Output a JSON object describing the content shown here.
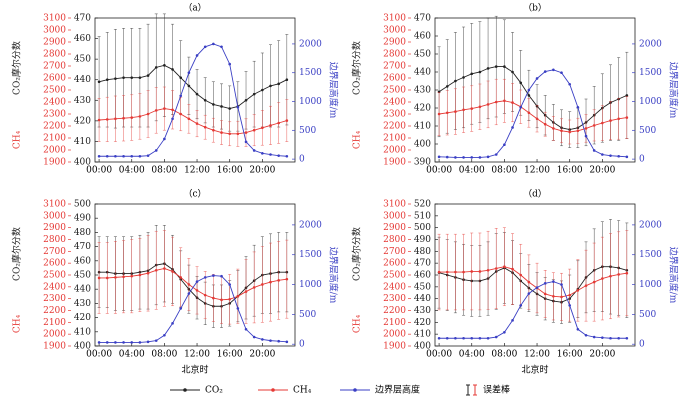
{
  "chart_data": [
    {
      "type": "line",
      "title": "（a）",
      "x": [
        0,
        1,
        2,
        3,
        4,
        5,
        6,
        7,
        8,
        9,
        10,
        11,
        12,
        13,
        14,
        15,
        16,
        17,
        18,
        19,
        20,
        21,
        22,
        23
      ],
      "xlim": [
        -0.5,
        24
      ],
      "xticks": [
        {
          "value": 0,
          "label": "00:00"
        },
        {
          "value": 4,
          "label": "04:00"
        },
        {
          "value": 8,
          "label": "08:00"
        },
        {
          "value": 12,
          "label": "12:00"
        },
        {
          "value": 16,
          "label": "16:00"
        },
        {
          "value": 20,
          "label": "20:00"
        }
      ],
      "ylabel": "CO₂摩尔分数",
      "ylim": [
        400,
        470
      ],
      "yticks": [
        400,
        410,
        420,
        430,
        440,
        450,
        460,
        470
      ],
      "y3label": "CH₄",
      "y3lim": [
        1900,
        3100
      ],
      "y3ticks": [
        1900,
        2000,
        2100,
        2200,
        2300,
        2400,
        2500,
        2600,
        2700,
        2800,
        2900,
        3000,
        3100
      ],
      "y2label": "边界层高度/m",
      "y2lim": [
        -50,
        2450
      ],
      "y2ticks": [
        0,
        500,
        1000,
        1500,
        2000
      ],
      "series": [
        {
          "name": "CO₂",
          "color": "#222222",
          "axis": "y",
          "values": [
            439,
            440,
            440.5,
            441,
            441,
            441,
            442,
            446,
            447,
            445,
            441,
            437,
            433,
            430,
            428,
            427,
            426,
            427,
            430,
            433,
            435,
            437,
            438,
            440
          ],
          "errors": [
            22,
            23,
            24,
            24,
            24,
            24,
            25,
            26,
            25,
            22,
            18,
            14,
            12,
            11,
            11,
            11,
            11,
            12,
            14,
            16,
            18,
            20,
            21,
            22
          ]
        },
        {
          "name": "CH₄",
          "color": "#e53935",
          "axis": "y3",
          "values": [
            2250,
            2255,
            2260,
            2265,
            2270,
            2280,
            2300,
            2330,
            2345,
            2335,
            2300,
            2260,
            2220,
            2190,
            2165,
            2145,
            2135,
            2135,
            2145,
            2165,
            2185,
            2205,
            2225,
            2245
          ],
          "errors": [
            180,
            185,
            190,
            190,
            190,
            190,
            195,
            190,
            180,
            160,
            140,
            120,
            110,
            100,
            100,
            100,
            100,
            105,
            115,
            130,
            145,
            160,
            170,
            175
          ]
        },
        {
          "name": "边界层高度",
          "color": "#3a3fc4",
          "axis": "y2",
          "values": [
            50,
            50,
            50,
            50,
            50,
            50,
            60,
            150,
            350,
            700,
            1100,
            1500,
            1800,
            1950,
            2000,
            1950,
            1650,
            900,
            300,
            150,
            100,
            80,
            60,
            50
          ]
        }
      ]
    },
    {
      "type": "line",
      "title": "（b）",
      "x": [
        0,
        1,
        2,
        3,
        4,
        5,
        6,
        7,
        8,
        9,
        10,
        11,
        12,
        13,
        14,
        15,
        16,
        17,
        18,
        19,
        20,
        21,
        22,
        23
      ],
      "xlim": [
        -0.5,
        24
      ],
      "xticks": [
        {
          "value": 0,
          "label": "00:00"
        },
        {
          "value": 4,
          "label": "04:00"
        },
        {
          "value": 8,
          "label": "08:00"
        },
        {
          "value": 12,
          "label": "12:00"
        },
        {
          "value": 16,
          "label": "16:00"
        },
        {
          "value": 20,
          "label": "20:00"
        }
      ],
      "ylabel": "CO₂摩尔分数",
      "ylim": [
        390,
        470
      ],
      "yticks": [
        390,
        400,
        410,
        420,
        430,
        440,
        450,
        460,
        470
      ],
      "y3label": "CH₄",
      "y3lim": [
        1900,
        3100
      ],
      "y3ticks": [
        1900,
        2000,
        2100,
        2200,
        2300,
        2400,
        2500,
        2600,
        2700,
        2800,
        2900,
        3000,
        3100
      ],
      "y2label": "边界层高度/m",
      "y2lim": [
        -50,
        2450
      ],
      "y2ticks": [
        0,
        500,
        1000,
        1500,
        2000
      ],
      "series": [
        {
          "name": "CO₂",
          "color": "#222222",
          "axis": "y",
          "values": [
            429,
            432,
            435,
            437,
            439,
            440,
            442,
            443,
            443,
            440,
            434,
            427,
            421,
            416,
            412,
            409,
            408,
            409,
            412,
            416,
            420,
            423,
            425,
            427
          ],
          "errors": [
            25,
            26,
            27,
            28,
            28,
            28,
            28,
            28,
            26,
            22,
            18,
            14,
            12,
            11,
            10,
            10,
            10,
            11,
            13,
            16,
            19,
            21,
            23,
            24
          ]
        },
        {
          "name": "CH₄",
          "color": "#e53935",
          "axis": "y3",
          "values": [
            2300,
            2310,
            2320,
            2335,
            2345,
            2360,
            2380,
            2400,
            2410,
            2395,
            2360,
            2310,
            2260,
            2215,
            2180,
            2160,
            2150,
            2160,
            2180,
            2205,
            2225,
            2245,
            2260,
            2270
          ],
          "errors": [
            180,
            185,
            190,
            190,
            190,
            190,
            195,
            190,
            180,
            160,
            140,
            120,
            110,
            100,
            100,
            100,
            100,
            105,
            115,
            130,
            145,
            160,
            170,
            175
          ]
        },
        {
          "name": "边界层高度",
          "color": "#3a3fc4",
          "axis": "y2",
          "values": [
            40,
            35,
            30,
            30,
            30,
            30,
            40,
            80,
            250,
            550,
            900,
            1200,
            1400,
            1520,
            1550,
            1500,
            1300,
            900,
            400,
            150,
            80,
            60,
            50,
            40
          ]
        }
      ]
    },
    {
      "type": "line",
      "title": "（c）",
      "xlabel": "北京时",
      "x": [
        0,
        1,
        2,
        3,
        4,
        5,
        6,
        7,
        8,
        9,
        10,
        11,
        12,
        13,
        14,
        15,
        16,
        17,
        18,
        19,
        20,
        21,
        22,
        23
      ],
      "xlim": [
        -0.5,
        24
      ],
      "xticks": [
        {
          "value": 0,
          "label": "00:00"
        },
        {
          "value": 4,
          "label": "04:00"
        },
        {
          "value": 8,
          "label": "08:00"
        },
        {
          "value": 12,
          "label": "12:00"
        },
        {
          "value": 16,
          "label": "16:00"
        },
        {
          "value": 20,
          "label": "20:00"
        }
      ],
      "ylabel": "CO₂摩尔分数",
      "ylim": [
        400,
        500
      ],
      "yticks": [
        400,
        410,
        420,
        430,
        440,
        450,
        460,
        470,
        480,
        490,
        500
      ],
      "y3label": "CH₄",
      "y3lim": [
        1900,
        3100
      ],
      "y3ticks": [
        1900,
        2000,
        2100,
        2200,
        2300,
        2400,
        2500,
        2600,
        2700,
        2800,
        2900,
        3000,
        3100
      ],
      "y2label": "边界层高度/m",
      "y2lim": [
        -30,
        2350
      ],
      "y2ticks": [
        0,
        500,
        1000,
        1500,
        2000
      ],
      "series": [
        {
          "name": "CO₂",
          "color": "#222222",
          "axis": "y",
          "values": [
            452,
            452,
            451,
            451,
            451,
            452,
            453,
            457,
            458,
            454,
            447,
            440,
            434,
            430,
            428,
            428,
            430,
            435,
            441,
            446,
            450,
            451,
            452,
            452
          ],
          "errors": [
            25,
            25,
            26,
            26,
            26,
            26,
            27,
            28,
            27,
            24,
            20,
            17,
            15,
            15,
            15,
            15,
            16,
            18,
            22,
            25,
            27,
            28,
            28,
            28
          ]
        },
        {
          "name": "CH₄",
          "color": "#e53935",
          "axis": "y3",
          "values": [
            2475,
            2475,
            2480,
            2485,
            2490,
            2500,
            2515,
            2540,
            2555,
            2530,
            2480,
            2420,
            2370,
            2330,
            2305,
            2290,
            2295,
            2320,
            2360,
            2395,
            2420,
            2440,
            2455,
            2465
          ],
          "errors": [
            300,
            300,
            305,
            305,
            310,
            310,
            320,
            330,
            320,
            290,
            250,
            220,
            200,
            200,
            200,
            200,
            210,
            230,
            270,
            300,
            320,
            330,
            330,
            330
          ]
        },
        {
          "name": "边界层高度",
          "color": "#3a3fc4",
          "axis": "y2",
          "values": [
            30,
            30,
            30,
            30,
            30,
            30,
            40,
            60,
            150,
            350,
            600,
            850,
            1050,
            1120,
            1150,
            1140,
            1000,
            600,
            250,
            120,
            80,
            60,
            50,
            40
          ]
        }
      ]
    },
    {
      "type": "line",
      "title": "（d）",
      "xlabel": "北京时",
      "x": [
        0,
        1,
        2,
        3,
        4,
        5,
        6,
        7,
        8,
        9,
        10,
        11,
        12,
        13,
        14,
        15,
        16,
        17,
        18,
        19,
        20,
        21,
        22,
        23
      ],
      "xlim": [
        -0.5,
        24
      ],
      "xticks": [
        {
          "value": 0,
          "label": "00:00"
        },
        {
          "value": 4,
          "label": "04:00"
        },
        {
          "value": 8,
          "label": "08:00"
        },
        {
          "value": 12,
          "label": "12:00"
        },
        {
          "value": 16,
          "label": "16:00"
        },
        {
          "value": 20,
          "label": "20:00"
        }
      ],
      "ylabel": "CO₂摩尔分数",
      "ylim": [
        400,
        520
      ],
      "yticks": [
        400,
        410,
        420,
        430,
        440,
        450,
        460,
        470,
        480,
        490,
        500,
        510,
        520
      ],
      "y3label": "CH₄",
      "y3lim": [
        1900,
        3100
      ],
      "y3ticks": [
        1900,
        2000,
        2100,
        2200,
        2300,
        2400,
        2500,
        2600,
        2700,
        2800,
        2900,
        3000,
        3100
      ],
      "y2label": "边界层高度/m",
      "y2lim": [
        -30,
        2350
      ],
      "y2ticks": [
        0,
        500,
        1000,
        1500,
        2000
      ],
      "series": [
        {
          "name": "CO₂",
          "color": "#222222",
          "axis": "y",
          "values": [
            462,
            460,
            458,
            456,
            455,
            455,
            457,
            463,
            466,
            462,
            455,
            449,
            444,
            440,
            438,
            437,
            440,
            448,
            458,
            464,
            467,
            467,
            466,
            464
          ],
          "errors": [
            30,
            30,
            30,
            30,
            30,
            30,
            31,
            32,
            30,
            27,
            23,
            20,
            18,
            18,
            18,
            18,
            20,
            24,
            30,
            35,
            38,
            40,
            40,
            40
          ]
        },
        {
          "name": "CH₄",
          "color": "#e53935",
          "axis": "y3",
          "values": [
            2525,
            2525,
            2525,
            2525,
            2530,
            2530,
            2540,
            2555,
            2570,
            2550,
            2500,
            2440,
            2390,
            2340,
            2320,
            2315,
            2330,
            2370,
            2410,
            2440,
            2470,
            2490,
            2505,
            2515
          ],
          "errors": [
            320,
            320,
            320,
            320,
            325,
            325,
            330,
            340,
            330,
            300,
            260,
            230,
            210,
            200,
            200,
            200,
            220,
            260,
            300,
            330,
            350,
            360,
            360,
            360
          ]
        },
        {
          "name": "边界层高度",
          "color": "#3a3fc4",
          "axis": "y2",
          "values": [
            100,
            100,
            100,
            100,
            100,
            100,
            100,
            120,
            200,
            400,
            650,
            850,
            950,
            1020,
            1050,
            1000,
            650,
            250,
            150,
            120,
            110,
            100,
            100,
            100
          ]
        }
      ]
    }
  ],
  "legend_error_label": "误差棒"
}
